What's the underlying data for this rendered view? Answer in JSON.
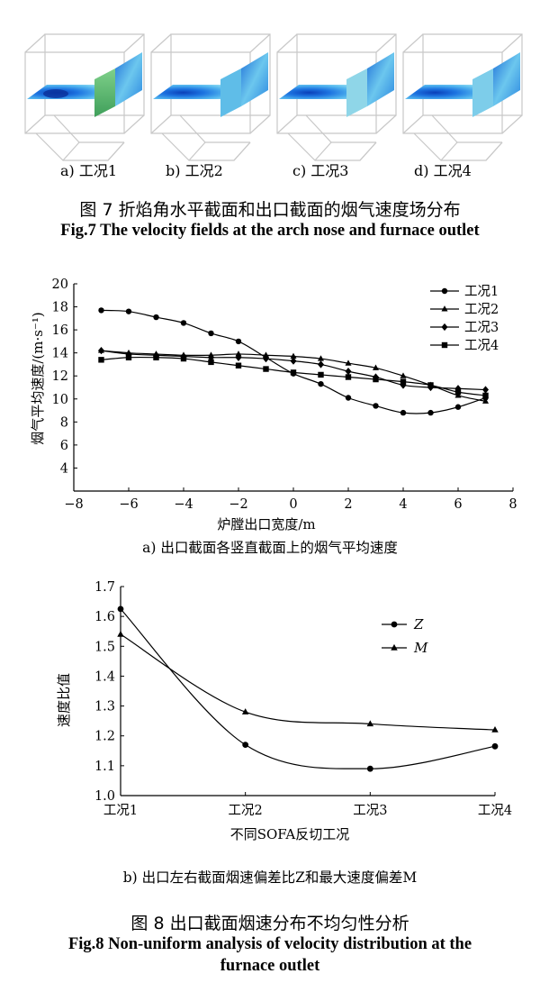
{
  "fig7": {
    "panel_labels": [
      "a) 工况1",
      "b) 工况2",
      "c) 工况3",
      "d) 工况4"
    ],
    "caption_zh": "图 7  折焰角水平截面和出口截面的烟气速度场分布",
    "caption_en": "Fig.7 The velocity fields at the arch nose and furnace outlet"
  },
  "fig8": {
    "caption_zh": "图 8  出口截面烟速分布不均匀性分析",
    "caption_en_line1": "Fig.8 Non-uniform analysis of velocity distribution at the",
    "caption_en_line2": "furnace outlet"
  },
  "chart_data": [
    {
      "type": "line",
      "panel_caption": "a) 出口截面各竖直截面上的烟气平均速度",
      "xlabel": "炉膛出口宽度/m",
      "ylabel": "烟气平均速度/(m·s⁻¹)",
      "xlim": [
        -8,
        8
      ],
      "ylim": [
        2,
        20
      ],
      "xticks": [
        -8,
        -6,
        -4,
        -2,
        0,
        2,
        4,
        6,
        8
      ],
      "yticks": [
        4,
        6,
        8,
        10,
        12,
        14,
        16,
        18,
        20
      ],
      "xtick_labels": [
        "−8",
        "−6",
        "−4",
        "−2",
        "0",
        "2",
        "4",
        "6",
        "8"
      ],
      "ytick_labels": [
        "4",
        "6",
        "8",
        "10",
        "12",
        "14",
        "16",
        "18",
        "20"
      ],
      "legend_position": "top-right",
      "grid": false,
      "x": [
        -7,
        -6,
        -5,
        -4,
        -3,
        -2,
        -1,
        0,
        1,
        2,
        3,
        4,
        5,
        6,
        7
      ],
      "series": [
        {
          "name": "工况1",
          "marker": "circle",
          "values": [
            17.7,
            17.6,
            17.1,
            16.6,
            15.7,
            15.0,
            13.6,
            12.2,
            11.3,
            10.1,
            9.4,
            8.8,
            8.8,
            9.3,
            10.1
          ]
        },
        {
          "name": "工况2",
          "marker": "triangle",
          "values": [
            14.2,
            14.0,
            13.9,
            13.8,
            13.8,
            13.9,
            13.8,
            13.7,
            13.5,
            13.1,
            12.7,
            12.0,
            11.2,
            10.3,
            9.8
          ]
        },
        {
          "name": "工况3",
          "marker": "diamond",
          "values": [
            14.2,
            13.9,
            13.8,
            13.7,
            13.6,
            13.6,
            13.5,
            13.3,
            13.0,
            12.4,
            11.9,
            11.2,
            11.0,
            10.9,
            10.8
          ]
        },
        {
          "name": "工况4",
          "marker": "square",
          "values": [
            13.4,
            13.6,
            13.6,
            13.5,
            13.2,
            12.9,
            12.6,
            12.3,
            12.1,
            11.9,
            11.7,
            11.5,
            11.2,
            10.6,
            10.3
          ]
        }
      ]
    },
    {
      "type": "line",
      "panel_caption": "b) 出口左右截面烟速偏差比Z和最大速度偏差M",
      "xlabel": "不同SOFA反切工况",
      "ylabel": "速度比值",
      "categories": [
        "工况1",
        "工况2",
        "工况3",
        "工况4"
      ],
      "ylim": [
        1.0,
        1.7
      ],
      "yticks": [
        1.0,
        1.1,
        1.2,
        1.3,
        1.4,
        1.5,
        1.6,
        1.7
      ],
      "ytick_labels": [
        "1.0",
        "1.1",
        "1.2",
        "1.3",
        "1.4",
        "1.5",
        "1.6",
        "1.7"
      ],
      "legend_position": "top-right",
      "grid": false,
      "series": [
        {
          "name": "Z",
          "marker": "circle",
          "values": [
            1.625,
            1.17,
            1.09,
            1.165
          ]
        },
        {
          "name": "M",
          "marker": "triangle",
          "values": [
            1.54,
            1.28,
            1.24,
            1.22
          ]
        }
      ]
    }
  ]
}
